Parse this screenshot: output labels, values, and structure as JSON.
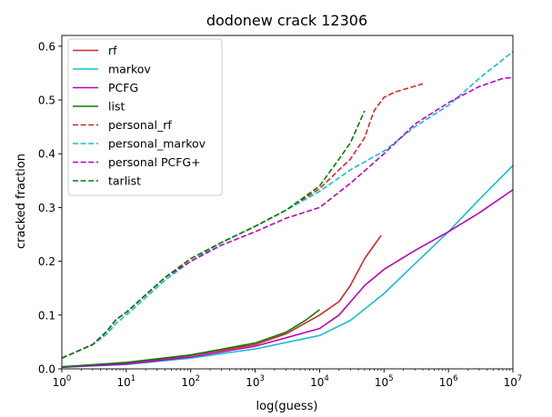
{
  "chart_data": {
    "type": "line",
    "title": "dodonew crack 12306",
    "xlabel": "log(guess)",
    "ylabel": "cracked fraction",
    "xscale": "log",
    "xlim": [
      1,
      10000000
    ],
    "ylim": [
      0,
      0.62
    ],
    "grid": false,
    "legend_position": "top-left",
    "x_ticks": [
      {
        "value": 1,
        "base": "10",
        "exp": "0"
      },
      {
        "value": 10,
        "base": "10",
        "exp": "1"
      },
      {
        "value": 100,
        "base": "10",
        "exp": "2"
      },
      {
        "value": 1000,
        "base": "10",
        "exp": "3"
      },
      {
        "value": 10000,
        "base": "10",
        "exp": "4"
      },
      {
        "value": 100000,
        "base": "10",
        "exp": "5"
      },
      {
        "value": 1000000,
        "base": "10",
        "exp": "6"
      },
      {
        "value": 10000000,
        "base": "10",
        "exp": "7"
      }
    ],
    "y_ticks": [
      {
        "value": 0.0,
        "label": "0.0"
      },
      {
        "value": 0.1,
        "label": "0.1"
      },
      {
        "value": 0.2,
        "label": "0.2"
      },
      {
        "value": 0.3,
        "label": "0.3"
      },
      {
        "value": 0.4,
        "label": "0.4"
      },
      {
        "value": 0.5,
        "label": "0.5"
      },
      {
        "value": 0.6,
        "label": "0.6"
      }
    ],
    "series": [
      {
        "name": "rf",
        "color": "#d62728",
        "dash": "solid",
        "x": [
          1,
          10,
          100,
          1000,
          3000,
          10000,
          20000,
          30000,
          50000,
          90000
        ],
        "y": [
          0.003,
          0.01,
          0.025,
          0.045,
          0.065,
          0.1,
          0.125,
          0.155,
          0.205,
          0.248
        ]
      },
      {
        "name": "markov",
        "color": "#17becf",
        "dash": "solid",
        "x": [
          1,
          10,
          100,
          1000,
          10000,
          30000,
          100000,
          300000,
          1000000,
          3000000,
          10000000
        ],
        "y": [
          0.003,
          0.008,
          0.02,
          0.037,
          0.062,
          0.09,
          0.14,
          0.195,
          0.255,
          0.315,
          0.378
        ]
      },
      {
        "name": "PCFG",
        "color": "#bf00bf",
        "dash": "solid",
        "x": [
          1,
          10,
          100,
          1000,
          10000,
          20000,
          50000,
          100000,
          300000,
          1000000,
          3000000,
          10000000
        ],
        "y": [
          0.003,
          0.009,
          0.022,
          0.042,
          0.075,
          0.1,
          0.155,
          0.185,
          0.22,
          0.255,
          0.29,
          0.333
        ]
      },
      {
        "name": "list",
        "color": "#008000",
        "dash": "solid",
        "x": [
          1,
          10,
          100,
          1000,
          3000,
          6000,
          10000
        ],
        "y": [
          0.004,
          0.012,
          0.026,
          0.048,
          0.068,
          0.09,
          0.11
        ]
      },
      {
        "name": "personal_rf",
        "color": "#d62728",
        "dash": "dashed",
        "x": [
          1,
          3,
          5,
          7,
          10,
          40,
          100,
          300,
          1000,
          3000,
          10000,
          20000,
          30000,
          50000,
          70000,
          100000,
          150000,
          400000
        ],
        "y": [
          0.02,
          0.045,
          0.07,
          0.092,
          0.105,
          0.17,
          0.205,
          0.235,
          0.265,
          0.295,
          0.335,
          0.37,
          0.39,
          0.43,
          0.48,
          0.505,
          0.515,
          0.53
        ]
      },
      {
        "name": "personal_markov",
        "color": "#17becf",
        "dash": "dashed",
        "x": [
          1,
          3,
          5,
          7,
          10,
          40,
          100,
          300,
          1000,
          3000,
          10000,
          30000,
          100000,
          300000,
          1000000,
          3000000,
          10000000
        ],
        "y": [
          0.02,
          0.045,
          0.065,
          0.085,
          0.1,
          0.165,
          0.2,
          0.235,
          0.265,
          0.295,
          0.33,
          0.37,
          0.405,
          0.45,
          0.49,
          0.54,
          0.59
        ]
      },
      {
        "name": "personal PCFG+",
        "color": "#bf00bf",
        "dash": "dashed",
        "x": [
          1,
          3,
          5,
          7,
          10,
          40,
          100,
          300,
          1000,
          3000,
          10000,
          30000,
          100000,
          300000,
          1000000,
          3000000,
          7000000,
          10000000
        ],
        "y": [
          0.02,
          0.045,
          0.07,
          0.092,
          0.105,
          0.17,
          0.2,
          0.23,
          0.255,
          0.28,
          0.3,
          0.345,
          0.4,
          0.455,
          0.495,
          0.525,
          0.54,
          0.542
        ]
      },
      {
        "name": "tarlist",
        "color": "#008000",
        "dash": "dashed",
        "x": [
          1,
          3,
          5,
          7,
          10,
          40,
          100,
          300,
          1000,
          3000,
          10000,
          20000,
          30000,
          50000
        ],
        "y": [
          0.02,
          0.045,
          0.07,
          0.092,
          0.105,
          0.17,
          0.205,
          0.235,
          0.265,
          0.295,
          0.34,
          0.39,
          0.42,
          0.48
        ]
      }
    ]
  }
}
